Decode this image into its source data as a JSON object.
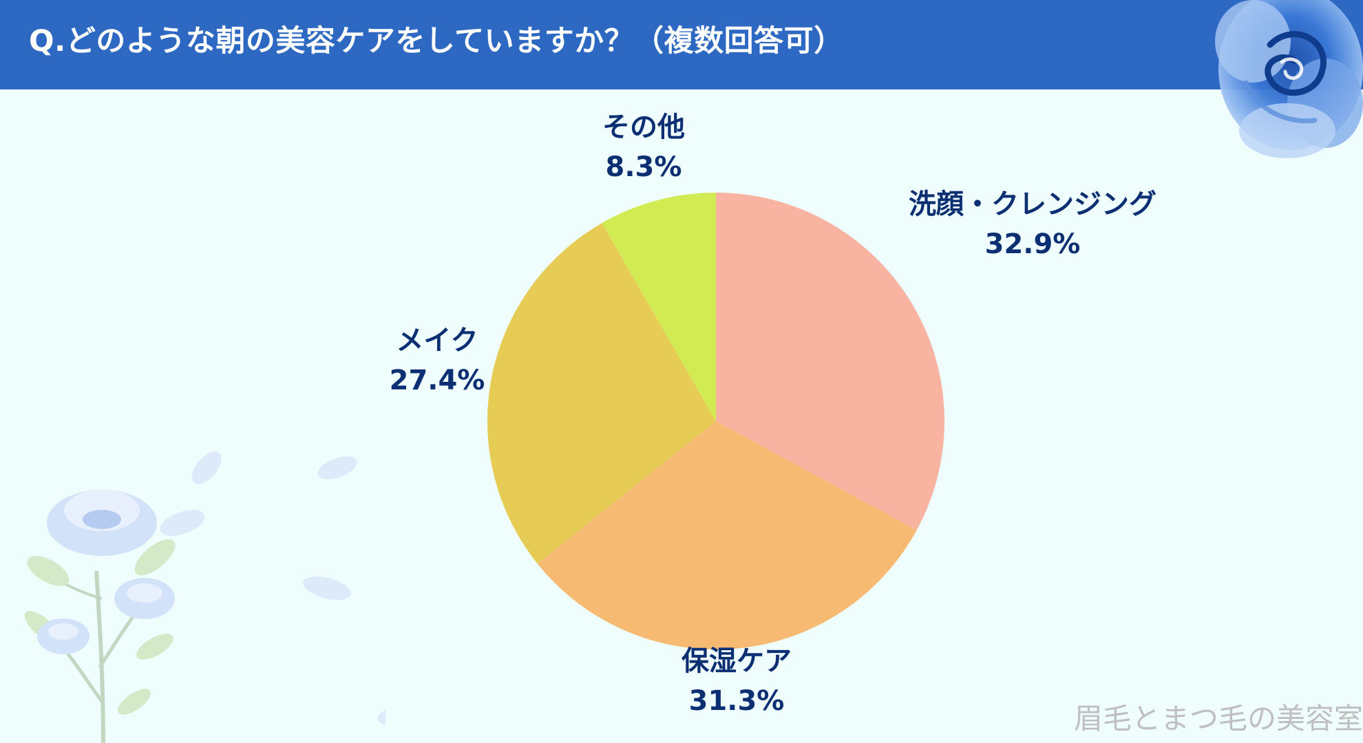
{
  "header": {
    "title": "Q.どのような朝の美容ケアをしていますか？（複数回答可）"
  },
  "colors": {
    "header_bg": "#2d68c2",
    "page_bg": "#effdfd",
    "label_text": "#0c2f73",
    "watermark_text": "#bfbfbf"
  },
  "decorations": {
    "top_right": "blue-rose-watercolor",
    "bottom_left": "blue-rose-stem-and-petals"
  },
  "chart_data": {
    "type": "pie",
    "title": "",
    "start_angle": "12 o'clock",
    "direction": "clockwise",
    "legend": "none (labels next to slices)",
    "slices": [
      {
        "label": "洗顔・クレンジング",
        "value": 32.9,
        "value_text": "32.9%",
        "color": "#f9b3a1"
      },
      {
        "label": "保湿ケア",
        "value": 31.3,
        "value_text": "31.3%",
        "color": "#f6ba72"
      },
      {
        "label": "メイク",
        "value": 27.4,
        "value_text": "27.4%",
        "color": "#e6cc55"
      },
      {
        "label": "その他",
        "value": 8.3,
        "value_text": "8.3%",
        "color": "#d2eb52"
      }
    ]
  },
  "watermark": {
    "text": "眉毛とまつ毛の美容室"
  }
}
